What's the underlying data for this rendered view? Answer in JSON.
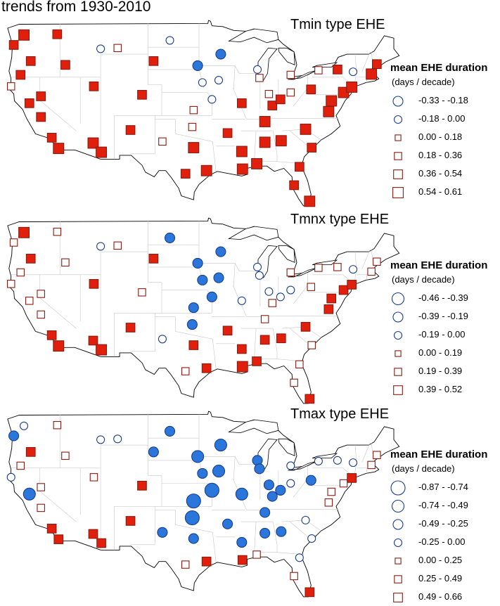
{
  "title": "trends from 1930-2010",
  "colors": {
    "negative_fill": "#2a76db",
    "negative_stroke": "#1a3f8c",
    "positive_fill": "#e0200c",
    "positive_stroke": "#8b1b10"
  },
  "panels": [
    {
      "id": "tmin",
      "title": "Tmin type EHE",
      "legend_title": "mean EHE duration",
      "legend_units": "(days / decade)",
      "legend_items": [
        {
          "label": "-0.33 - -0.18",
          "shape": "circle",
          "fill": false,
          "size": 3
        },
        {
          "label": "-0.18 - 0.00",
          "shape": "circle",
          "fill": false,
          "size": 2
        },
        {
          "label": "0.00 - 0.18",
          "shape": "square",
          "fill": false,
          "size": 1
        },
        {
          "label": "0.18 - 0.36",
          "shape": "square",
          "fill": false,
          "size": 2
        },
        {
          "label": "0.36 - 0.54",
          "shape": "square",
          "fill": false,
          "size": 3
        },
        {
          "label": "0.54 - 0.61",
          "shape": "square",
          "fill": false,
          "size": 4
        }
      ]
    },
    {
      "id": "tmnx",
      "title": "Tmnx type EHE",
      "legend_title": "mean EHE duration",
      "legend_units": "(days / decade)",
      "legend_items": [
        {
          "label": "-0.46 - -0.39",
          "shape": "circle",
          "fill": false,
          "size": 4
        },
        {
          "label": "-0.39 - -0.19",
          "shape": "circle",
          "fill": false,
          "size": 3
        },
        {
          "label": "-0.19 - 0.00",
          "shape": "circle",
          "fill": false,
          "size": 2
        },
        {
          "label": "0.00 - 0.19",
          "shape": "square",
          "fill": false,
          "size": 1
        },
        {
          "label": "0.19 - 0.39",
          "shape": "square",
          "fill": false,
          "size": 2
        },
        {
          "label": "0.39 - 0.52",
          "shape": "square",
          "fill": false,
          "size": 3
        }
      ]
    },
    {
      "id": "tmax",
      "title": "Tmax type EHE",
      "legend_title": "mean EHE duration",
      "legend_units": "(days / decade)",
      "legend_items": [
        {
          "label": "-0.87 - -0.74",
          "shape": "circle",
          "fill": false,
          "size": 5
        },
        {
          "label": "-0.74 - -0.49",
          "shape": "circle",
          "fill": false,
          "size": 4
        },
        {
          "label": "-0.49 - -0.25",
          "shape": "circle",
          "fill": false,
          "size": 3
        },
        {
          "label": "-0.25 - 0.00",
          "shape": "circle",
          "fill": false,
          "size": 2
        },
        {
          "label": "0.00 - 0.25",
          "shape": "square",
          "fill": false,
          "size": 1
        },
        {
          "label": "0.25 - 0.49",
          "shape": "square",
          "fill": false,
          "size": 2
        },
        {
          "label": "0.49 - 0.66",
          "shape": "square",
          "fill": false,
          "size": 3
        }
      ]
    }
  ],
  "stations": [
    {
      "lon": -122.3,
      "lat": 47.5,
      "tmin": 4,
      "tmnx": 4,
      "tmax": -2
    },
    {
      "lon": -123.8,
      "lat": 46.2,
      "tmin": 3,
      "tmnx": 2,
      "tmax": -3
    },
    {
      "lon": -117.4,
      "lat": 47.6,
      "tmin": 3,
      "tmnx": 2,
      "tmax": 2
    },
    {
      "lon": -121.3,
      "lat": 44.1,
      "tmin": 3,
      "tmnx": 3,
      "tmax": 3
    },
    {
      "lon": -122.8,
      "lat": 42.3,
      "tmin": 3,
      "tmnx": 2,
      "tmax": 2
    },
    {
      "lon": -124.2,
      "lat": 40.8,
      "tmin": 2,
      "tmnx": 2,
      "tmax": -2
    },
    {
      "lon": -121.5,
      "lat": 38.6,
      "tmin": 3,
      "tmnx": 2,
      "tmax": -4
    },
    {
      "lon": -119.8,
      "lat": 36.8,
      "tmin": 3,
      "tmnx": 2,
      "tmax": 2
    },
    {
      "lon": -118.2,
      "lat": 34.1,
      "tmin": 3,
      "tmnx": 3,
      "tmax": 3
    },
    {
      "lon": -117.2,
      "lat": 32.7,
      "tmin": 4,
      "tmnx": 4,
      "tmax": 3
    },
    {
      "lon": -119.8,
      "lat": 39.5,
      "tmin": 3,
      "tmnx": 2,
      "tmax": 2
    },
    {
      "lon": -116.2,
      "lat": 43.6,
      "tmin": 3,
      "tmnx": 2,
      "tmax": 2
    },
    {
      "lon": -112.0,
      "lat": 40.8,
      "tmin": 3,
      "tmnx": 3,
      "tmax": 2
    },
    {
      "lon": -112.1,
      "lat": 33.4,
      "tmin": 4,
      "tmnx": 3,
      "tmax": 3
    },
    {
      "lon": -110.9,
      "lat": 32.2,
      "tmin": 4,
      "tmnx": 4,
      "tmax": 3
    },
    {
      "lon": -106.6,
      "lat": 35.1,
      "tmin": 3,
      "tmnx": 3,
      "tmax": 3
    },
    {
      "lon": -104.9,
      "lat": 39.7,
      "tmin": 3,
      "tmnx": 2,
      "tmax": 3
    },
    {
      "lon": -108.5,
      "lat": 45.8,
      "tmin": 2,
      "tmnx": 2,
      "tmax": -2
    },
    {
      "lon": -111.0,
      "lat": 45.7,
      "tmin": -2,
      "tmnx": -2,
      "tmax": -2
    },
    {
      "lon": -100.8,
      "lat": 46.8,
      "tmin": -2,
      "tmnx": -3,
      "tmax": -3
    },
    {
      "lon": -103.2,
      "lat": 44.1,
      "tmin": 3,
      "tmnx": 3,
      "tmax": -3
    },
    {
      "lon": -96.7,
      "lat": 43.5,
      "tmin": -3,
      "tmnx": -3,
      "tmax": -4
    },
    {
      "lon": -96.0,
      "lat": 41.3,
      "tmin": -2,
      "tmnx": -3,
      "tmax": -3
    },
    {
      "lon": -97.3,
      "lat": 37.7,
      "tmin": 2,
      "tmnx": -3,
      "tmax": -5
    },
    {
      "lon": -97.5,
      "lat": 35.5,
      "tmin": 2,
      "tmnx": -3,
      "tmax": -5
    },
    {
      "lon": -97.3,
      "lat": 32.8,
      "tmin": 4,
      "tmnx": 3,
      "tmax": -3
    },
    {
      "lon": -95.4,
      "lat": 29.8,
      "tmin": 4,
      "tmnx": 3,
      "tmax": 3
    },
    {
      "lon": -98.5,
      "lat": 29.4,
      "tmin": 3,
      "tmnx": 2,
      "tmax": 2
    },
    {
      "lon": -101.9,
      "lat": 33.6,
      "tmin": 2,
      "tmnx": -2,
      "tmax": -3
    },
    {
      "lon": -93.3,
      "lat": 45.0,
      "tmin": -3,
      "tmnx": -3,
      "tmax": -4
    },
    {
      "lon": -93.6,
      "lat": 41.6,
      "tmin": -2,
      "tmnx": -3,
      "tmax": -4
    },
    {
      "lon": -94.6,
      "lat": 39.1,
      "tmin": -2,
      "tmnx": -3,
      "tmax": -5
    },
    {
      "lon": -90.2,
      "lat": 38.6,
      "tmin": 3,
      "tmnx": -2,
      "tmax": -4
    },
    {
      "lon": -92.3,
      "lat": 34.7,
      "tmin": 3,
      "tmnx": 3,
      "tmax": -3
    },
    {
      "lon": -90.1,
      "lat": 30.0,
      "tmin": 4,
      "tmnx": 4,
      "tmax": 3
    },
    {
      "lon": -88.0,
      "lat": 30.7,
      "tmin": 4,
      "tmnx": 3,
      "tmax": 2
    },
    {
      "lon": -90.2,
      "lat": 32.3,
      "tmin": 4,
      "tmnx": 3,
      "tmax": -3
    },
    {
      "lon": -86.8,
      "lat": 33.5,
      "tmin": 4,
      "tmnx": 3,
      "tmax": -3
    },
    {
      "lon": -86.8,
      "lat": 36.2,
      "tmin": 4,
      "tmnx": 2,
      "tmax": -3
    },
    {
      "lon": -87.9,
      "lat": 43.0,
      "tmin": -2,
      "tmnx": -2,
      "tmax": -3
    },
    {
      "lon": -87.6,
      "lat": 41.9,
      "tmin": 2,
      "tmnx": -2,
      "tmax": -3
    },
    {
      "lon": -86.2,
      "lat": 39.8,
      "tmin": 2,
      "tmnx": -2,
      "tmax": -3
    },
    {
      "lon": -85.7,
      "lat": 38.3,
      "tmin": 3,
      "tmnx": 2,
      "tmax": -3
    },
    {
      "lon": -84.5,
      "lat": 39.1,
      "tmin": 3,
      "tmnx": -2,
      "tmax": -3
    },
    {
      "lon": -83.0,
      "lat": 40.0,
      "tmin": 2,
      "tmnx": -2,
      "tmax": -2
    },
    {
      "lon": -83.0,
      "lat": 42.3,
      "tmin": 2,
      "tmnx": 2,
      "tmax": -2
    },
    {
      "lon": -84.4,
      "lat": 33.7,
      "tmin": 4,
      "tmnx": 3,
      "tmax": -3
    },
    {
      "lon": -81.7,
      "lat": 30.3,
      "tmin": 3,
      "tmnx": 2,
      "tmax": -2
    },
    {
      "lon": -80.2,
      "lat": 25.8,
      "tmin": 4,
      "tmnx": 3,
      "tmax": 3
    },
    {
      "lon": -82.5,
      "lat": 27.9,
      "tmin": 3,
      "tmnx": 2,
      "tmax": 2
    },
    {
      "lon": -80.8,
      "lat": 35.2,
      "tmin": 4,
      "tmnx": 3,
      "tmax": -2
    },
    {
      "lon": -79.9,
      "lat": 32.8,
      "tmin": 3,
      "tmnx": 2,
      "tmax": -2
    },
    {
      "lon": -77.4,
      "lat": 37.5,
      "tmin": 4,
      "tmnx": 3,
      "tmax": 2
    },
    {
      "lon": -77.0,
      "lat": 38.9,
      "tmin": 4,
      "tmnx": 3,
      "tmax": 2
    },
    {
      "lon": -75.2,
      "lat": 40.0,
      "tmin": 4,
      "tmnx": 3,
      "tmax": 2
    },
    {
      "lon": -74.0,
      "lat": 40.7,
      "tmin": 4,
      "tmnx": 3,
      "tmax": 3
    },
    {
      "lon": -71.1,
      "lat": 42.4,
      "tmin": 4,
      "tmnx": 2,
      "tmax": 2
    },
    {
      "lon": -73.8,
      "lat": 42.7,
      "tmin": -2,
      "tmnx": -2,
      "tmax": -2
    },
    {
      "lon": -76.1,
      "lat": 43.0,
      "tmin": 3,
      "tmnx": 2,
      "tmax": -2
    },
    {
      "lon": -78.9,
      "lat": 42.9,
      "tmin": 2,
      "tmnx": 2,
      "tmax": -2
    },
    {
      "lon": -80.0,
      "lat": 40.4,
      "tmin": 3,
      "tmnx": 2,
      "tmax": -3
    },
    {
      "lon": -70.3,
      "lat": 43.7,
      "tmin": 3,
      "tmnx": 2,
      "tmax": 2
    }
  ]
}
